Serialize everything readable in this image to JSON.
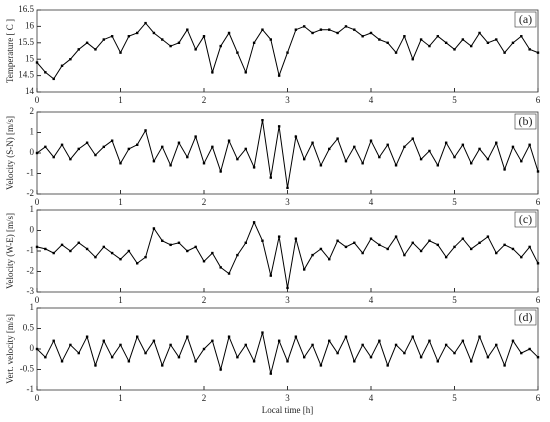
{
  "chart_data": [
    {
      "type": "line",
      "panel_label": "(a)",
      "ylabel": "Temperature [ C ]",
      "color": "#000000",
      "grid": false,
      "x": [
        0,
        0.1,
        0.2,
        0.3,
        0.4,
        0.5,
        0.6,
        0.7,
        0.8,
        0.9,
        1,
        1.1,
        1.2,
        1.3,
        1.4,
        1.5,
        1.6,
        1.7,
        1.8,
        1.9,
        2,
        2.1,
        2.2,
        2.3,
        2.4,
        2.5,
        2.6,
        2.7,
        2.8,
        2.9,
        3,
        3.1,
        3.2,
        3.3,
        3.4,
        3.5,
        3.6,
        3.7,
        3.8,
        3.9,
        4,
        4.1,
        4.2,
        4.3,
        4.4,
        4.5,
        4.6,
        4.7,
        4.8,
        4.9,
        5,
        5.1,
        5.2,
        5.3,
        5.4,
        5.5,
        5.6,
        5.7,
        5.8,
        5.9,
        6
      ],
      "values": [
        14.9,
        14.6,
        14.4,
        14.8,
        15.0,
        15.3,
        15.5,
        15.3,
        15.6,
        15.7,
        15.2,
        15.7,
        15.8,
        16.1,
        15.8,
        15.6,
        15.4,
        15.5,
        15.9,
        15.3,
        15.7,
        14.6,
        15.4,
        15.8,
        15.2,
        14.6,
        15.5,
        15.9,
        15.6,
        14.5,
        15.2,
        15.9,
        16.0,
        15.8,
        15.9,
        15.9,
        15.8,
        16.0,
        15.9,
        15.7,
        15.8,
        15.6,
        15.5,
        15.2,
        15.7,
        15.0,
        15.6,
        15.4,
        15.7,
        15.5,
        15.3,
        15.6,
        15.4,
        15.8,
        15.5,
        15.6,
        15.2,
        15.5,
        15.7,
        15.3,
        15.2
      ],
      "xlim": [
        0,
        6
      ],
      "xticks": [
        0,
        1,
        2,
        3,
        4,
        5,
        6
      ],
      "ylim": [
        14,
        16.5
      ],
      "yticks": [
        14,
        14.5,
        15,
        15.5,
        16,
        16.5
      ]
    },
    {
      "type": "line",
      "panel_label": "(b)",
      "ylabel": "Velocity (S-N) [m/s]",
      "color": "#000000",
      "grid": false,
      "x": [
        0,
        0.1,
        0.2,
        0.3,
        0.4,
        0.5,
        0.6,
        0.7,
        0.8,
        0.9,
        1,
        1.1,
        1.2,
        1.3,
        1.4,
        1.5,
        1.6,
        1.7,
        1.8,
        1.9,
        2,
        2.1,
        2.2,
        2.3,
        2.4,
        2.5,
        2.6,
        2.7,
        2.8,
        2.9,
        3,
        3.1,
        3.2,
        3.3,
        3.4,
        3.5,
        3.6,
        3.7,
        3.8,
        3.9,
        4,
        4.1,
        4.2,
        4.3,
        4.4,
        4.5,
        4.6,
        4.7,
        4.8,
        4.9,
        5,
        5.1,
        5.2,
        5.3,
        5.4,
        5.5,
        5.6,
        5.7,
        5.8,
        5.9,
        6
      ],
      "values": [
        0.0,
        0.3,
        -0.2,
        0.4,
        -0.3,
        0.2,
        0.5,
        -0.1,
        0.3,
        0.6,
        -0.5,
        0.2,
        0.4,
        1.1,
        -0.4,
        0.3,
        -0.6,
        0.5,
        -0.2,
        0.8,
        -0.5,
        0.3,
        -0.9,
        0.6,
        -0.3,
        0.2,
        -0.7,
        1.6,
        -1.2,
        1.3,
        -1.7,
        0.8,
        -0.3,
        0.5,
        -0.6,
        0.2,
        0.7,
        -0.4,
        0.3,
        -0.5,
        0.6,
        -0.2,
        0.4,
        -0.6,
        0.3,
        0.7,
        -0.3,
        0.1,
        -0.6,
        0.5,
        -0.2,
        0.4,
        -0.5,
        0.2,
        -0.3,
        0.5,
        -0.8,
        0.3,
        -0.4,
        0.4,
        -0.9
      ],
      "xlim": [
        0,
        6
      ],
      "xticks": [
        0,
        1,
        2,
        3,
        4,
        5,
        6
      ],
      "ylim": [
        -2,
        2
      ],
      "yticks": [
        -2,
        -1,
        0,
        1,
        2
      ]
    },
    {
      "type": "line",
      "panel_label": "(c)",
      "ylabel": "Velocity (W-E) [m/s]",
      "color": "#000000",
      "grid": false,
      "x": [
        0,
        0.1,
        0.2,
        0.3,
        0.4,
        0.5,
        0.6,
        0.7,
        0.8,
        0.9,
        1,
        1.1,
        1.2,
        1.3,
        1.4,
        1.5,
        1.6,
        1.7,
        1.8,
        1.9,
        2,
        2.1,
        2.2,
        2.3,
        2.4,
        2.5,
        2.6,
        2.7,
        2.8,
        2.9,
        3,
        3.1,
        3.2,
        3.3,
        3.4,
        3.5,
        3.6,
        3.7,
        3.8,
        3.9,
        4,
        4.1,
        4.2,
        4.3,
        4.4,
        4.5,
        4.6,
        4.7,
        4.8,
        4.9,
        5,
        5.1,
        5.2,
        5.3,
        5.4,
        5.5,
        5.6,
        5.7,
        5.8,
        5.9,
        6
      ],
      "values": [
        -0.8,
        -0.9,
        -1.1,
        -0.7,
        -1.0,
        -0.6,
        -0.9,
        -1.3,
        -0.8,
        -1.1,
        -1.4,
        -1.0,
        -1.6,
        -1.3,
        0.1,
        -0.5,
        -0.7,
        -0.6,
        -1.0,
        -0.8,
        -1.5,
        -1.1,
        -1.8,
        -2.1,
        -1.2,
        -0.6,
        0.4,
        -0.5,
        -2.2,
        -0.3,
        -2.8,
        -0.4,
        -1.9,
        -1.2,
        -0.9,
        -1.4,
        -0.5,
        -0.8,
        -0.6,
        -1.1,
        -0.4,
        -0.7,
        -0.9,
        -0.3,
        -1.2,
        -0.6,
        -1.0,
        -0.5,
        -0.7,
        -1.3,
        -0.8,
        -0.4,
        -0.9,
        -0.6,
        -0.3,
        -1.1,
        -0.7,
        -0.9,
        -1.3,
        -0.8,
        -1.6
      ],
      "xlim": [
        0,
        6
      ],
      "xticks": [
        0,
        1,
        2,
        3,
        4,
        5,
        6
      ],
      "ylim": [
        -3,
        1
      ],
      "yticks": [
        -3,
        -2,
        -1,
        0,
        1
      ]
    },
    {
      "type": "line",
      "panel_label": "(d)",
      "ylabel": "Vert. velocity [m/s]",
      "xlabel": "Local time [h]",
      "color": "#000000",
      "grid": false,
      "x": [
        0,
        0.1,
        0.2,
        0.3,
        0.4,
        0.5,
        0.6,
        0.7,
        0.8,
        0.9,
        1,
        1.1,
        1.2,
        1.3,
        1.4,
        1.5,
        1.6,
        1.7,
        1.8,
        1.9,
        2,
        2.1,
        2.2,
        2.3,
        2.4,
        2.5,
        2.6,
        2.7,
        2.8,
        2.9,
        3,
        3.1,
        3.2,
        3.3,
        3.4,
        3.5,
        3.6,
        3.7,
        3.8,
        3.9,
        4,
        4.1,
        4.2,
        4.3,
        4.4,
        4.5,
        4.6,
        4.7,
        4.8,
        4.9,
        5,
        5.1,
        5.2,
        5.3,
        5.4,
        5.5,
        5.6,
        5.7,
        5.8,
        5.9,
        6
      ],
      "values": [
        0.0,
        -0.2,
        0.2,
        -0.3,
        0.1,
        -0.1,
        0.3,
        -0.4,
        0.2,
        -0.2,
        0.1,
        -0.3,
        0.3,
        -0.1,
        0.2,
        -0.4,
        0.1,
        -0.2,
        0.3,
        -0.3,
        0.0,
        0.2,
        -0.5,
        0.3,
        -0.2,
        0.1,
        -0.3,
        0.4,
        -0.6,
        0.2,
        -0.3,
        0.3,
        -0.2,
        0.1,
        -0.4,
        0.2,
        -0.1,
        0.3,
        -0.3,
        0.1,
        -0.2,
        0.2,
        -0.4,
        0.1,
        -0.1,
        0.3,
        -0.2,
        0.2,
        -0.3,
        0.1,
        -0.1,
        0.2,
        -0.3,
        0.3,
        -0.2,
        0.1,
        -0.4,
        0.2,
        -0.1,
        0.0,
        -0.2
      ],
      "xlim": [
        0,
        6
      ],
      "xticks": [
        0,
        1,
        2,
        3,
        4,
        5,
        6
      ],
      "ylim": [
        -1,
        1
      ],
      "yticks": [
        -1,
        -0.5,
        0,
        0.5,
        1
      ]
    }
  ]
}
